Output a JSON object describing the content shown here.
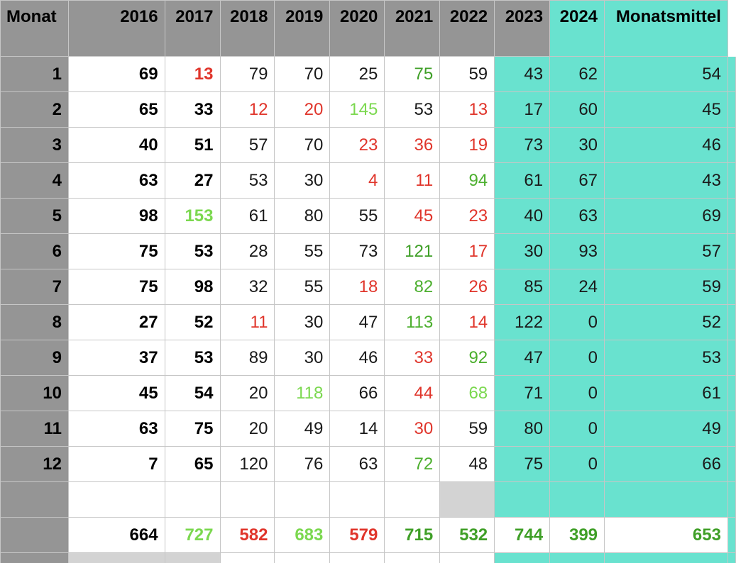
{
  "colors": {
    "header_gray": "#959595",
    "teal": "#69e2cf",
    "red": "#e0352b",
    "green": "#4caf2e",
    "light_green": "#7bd84f",
    "dark_green": "#3f9f27"
  },
  "header": {
    "first": "Monat",
    "years": [
      "2016",
      "2017",
      "2018",
      "2019",
      "2020",
      "2021",
      "2022",
      "2023",
      "2024"
    ],
    "last": "Monatsmittel"
  },
  "rows": [
    {
      "month": "1",
      "values": [
        "69",
        "13",
        "79",
        "70",
        "25",
        "75",
        "59",
        "43",
        "62"
      ],
      "mean": "54"
    },
    {
      "month": "2",
      "values": [
        "65",
        "33",
        "12",
        "20",
        "145",
        "53",
        "13",
        "17",
        "60"
      ],
      "mean": "45"
    },
    {
      "month": "3",
      "values": [
        "40",
        "51",
        "57",
        "70",
        "23",
        "36",
        "19",
        "73",
        "30"
      ],
      "mean": "46"
    },
    {
      "month": "4",
      "values": [
        "63",
        "27",
        "53",
        "30",
        "4",
        "11",
        "94",
        "61",
        "67"
      ],
      "mean": "43"
    },
    {
      "month": "5",
      "values": [
        "98",
        "153",
        "61",
        "80",
        "55",
        "45",
        "23",
        "40",
        "63"
      ],
      "mean": "69"
    },
    {
      "month": "6",
      "values": [
        "75",
        "53",
        "28",
        "55",
        "73",
        "121",
        "17",
        "30",
        "93"
      ],
      "mean": "57"
    },
    {
      "month": "7",
      "values": [
        "75",
        "98",
        "32",
        "55",
        "18",
        "82",
        "26",
        "85",
        "24"
      ],
      "mean": "59"
    },
    {
      "month": "8",
      "values": [
        "27",
        "52",
        "11",
        "30",
        "47",
        "113",
        "14",
        "122",
        "0"
      ],
      "mean": "52"
    },
    {
      "month": "9",
      "values": [
        "37",
        "53",
        "89",
        "30",
        "46",
        "33",
        "92",
        "47",
        "0"
      ],
      "mean": "53"
    },
    {
      "month": "10",
      "values": [
        "45",
        "54",
        "20",
        "118",
        "66",
        "44",
        "68",
        "71",
        "0"
      ],
      "mean": "61"
    },
    {
      "month": "11",
      "values": [
        "63",
        "75",
        "20",
        "49",
        "14",
        "30",
        "59",
        "80",
        "0"
      ],
      "mean": "49"
    },
    {
      "month": "12",
      "values": [
        "7",
        "65",
        "120",
        "76",
        "63",
        "72",
        "48",
        "75",
        "0"
      ],
      "mean": "66"
    }
  ],
  "totals": {
    "values": [
      "664",
      "727",
      "582",
      "683",
      "579",
      "715",
      "532",
      "744",
      "399"
    ],
    "mean": "653"
  }
}
